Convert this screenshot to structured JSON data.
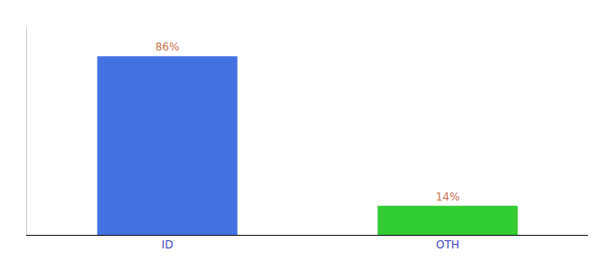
{
  "chart_data": {
    "type": "bar",
    "categories": [
      "ID",
      "OTH"
    ],
    "values": [
      86,
      14
    ],
    "value_labels": [
      "86%",
      "14%"
    ],
    "colors": [
      "#4472e0",
      "#33cc33"
    ],
    "ylim": [
      0,
      100
    ],
    "data_labels": true,
    "tick_labels": "x",
    "grid": false
  }
}
